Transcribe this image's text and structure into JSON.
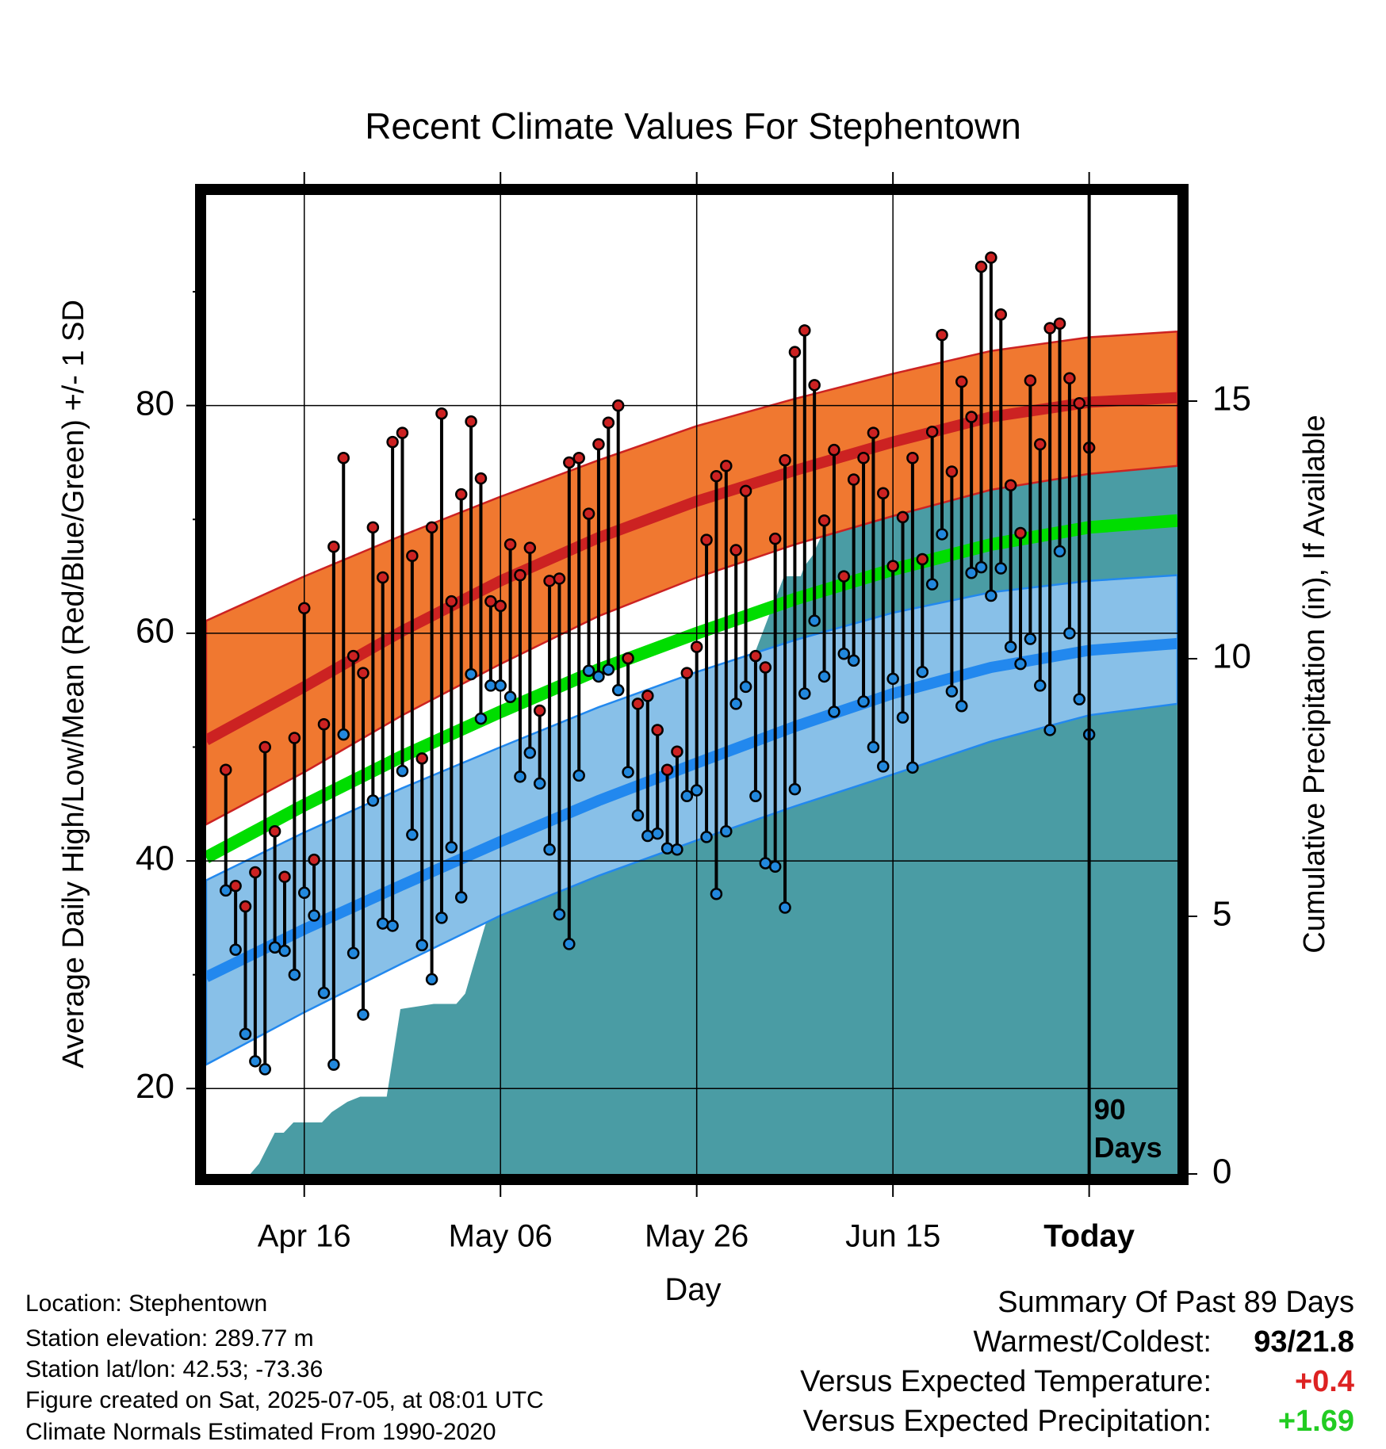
{
  "chart_data": {
    "type": "line",
    "title": "Recent Climate Values For Stephentown",
    "xlabel": "Day",
    "ylabel": "Average Daily High/Low/Mean (Red/Blue/Green) +/- 1 SD",
    "y2label": "Cumulative Precipitation (in), If Available",
    "ylim": [
      12.5,
      98.5
    ],
    "y2lim": [
      0,
      19
    ],
    "yticks": [
      20,
      40,
      60,
      80
    ],
    "y2ticks": [
      0,
      5,
      10,
      15
    ],
    "x_range_days": [
      -90,
      9
    ],
    "x_ticks": [
      {
        "day": -80,
        "label": "Apr 16"
      },
      {
        "day": -60,
        "label": "May 06"
      },
      {
        "day": -40,
        "label": "May 26"
      },
      {
        "day": -20,
        "label": "Jun 15"
      },
      {
        "day": 0,
        "label": "Today"
      }
    ],
    "today_marker": {
      "day": 0,
      "label_line1": "90",
      "label_line2": "Days"
    },
    "colors": {
      "high": "#cc2222",
      "high_band": "#f07830",
      "low": "#2288ee",
      "low_band": "#88c0e8",
      "mean": "#00dd00",
      "precip": "#4a9ca4"
    },
    "normals": {
      "days": [
        -90,
        -80,
        -70,
        -60,
        -50,
        -40,
        -30,
        -20,
        -10,
        0,
        9
      ],
      "high_mean": [
        50.6,
        55.3,
        60.2,
        64.6,
        68.4,
        71.6,
        74.3,
        76.8,
        79.0,
        80.3,
        80.7
      ],
      "high_upper": [
        61.1,
        65.0,
        68.6,
        72.0,
        75.2,
        78.2,
        80.6,
        82.8,
        84.8,
        86.0,
        86.5
      ],
      "high_lower": [
        43.2,
        47.8,
        52.8,
        57.3,
        61.5,
        64.9,
        67.8,
        70.3,
        72.6,
        74.0,
        74.7
      ],
      "low_mean": [
        29.8,
        34.0,
        37.9,
        41.7,
        45.3,
        48.6,
        51.8,
        54.7,
        57.0,
        58.5,
        59.1
      ],
      "low_upper": [
        38.3,
        42.5,
        46.4,
        50.0,
        53.5,
        56.6,
        59.4,
        61.8,
        63.6,
        64.6,
        65.1
      ],
      "low_lower": [
        22.1,
        26.7,
        31.0,
        35.2,
        38.7,
        41.8,
        44.8,
        47.6,
        50.5,
        52.8,
        53.8
      ],
      "mean": [
        40.3,
        44.9,
        49.2,
        53.1,
        56.8,
        60.0,
        63.0,
        65.6,
        67.8,
        69.3,
        69.9
      ]
    },
    "daily_high": [
      48.0,
      37.8,
      36.0,
      39.0,
      50.0,
      42.6,
      38.6,
      50.8,
      62.2,
      40.1,
      52.0,
      67.6,
      75.4,
      58.0,
      56.5,
      69.3,
      64.9,
      76.8,
      77.6,
      66.8,
      49.0,
      69.3,
      79.3,
      62.8,
      72.2,
      78.6,
      73.6,
      62.8,
      62.4,
      67.8,
      65.1,
      67.5,
      53.2,
      64.6,
      64.8,
      75.0,
      75.4,
      70.5,
      76.6,
      78.5,
      80.0,
      57.8,
      53.8,
      54.5,
      51.5,
      48.0,
      49.6,
      56.5,
      58.8,
      68.2,
      73.8,
      74.7,
      67.3,
      72.5,
      58.0,
      57.0,
      68.3,
      75.2,
      84.7,
      86.6,
      81.8,
      69.9,
      76.1,
      65.0,
      73.5,
      75.4,
      77.6,
      72.3,
      65.9,
      70.2,
      75.4,
      66.5,
      77.7,
      86.2,
      74.2,
      82.1,
      79.0,
      92.2,
      93.0,
      88.0,
      73.0,
      68.8,
      82.2,
      76.6,
      86.8,
      87.2,
      82.4,
      80.2,
      76.3
    ],
    "daily_low": [
      37.4,
      32.2,
      24.8,
      22.4,
      21.7,
      32.4,
      32.1,
      30.0,
      37.2,
      35.2,
      28.4,
      22.1,
      51.1,
      31.9,
      26.5,
      45.3,
      34.5,
      34.3,
      47.9,
      42.3,
      32.6,
      29.6,
      35.0,
      41.2,
      36.8,
      56.4,
      52.5,
      55.4,
      55.4,
      54.4,
      47.4,
      49.5,
      46.8,
      41.0,
      35.3,
      32.7,
      47.5,
      56.7,
      56.2,
      56.8,
      55.0,
      47.8,
      44.0,
      42.2,
      42.4,
      41.1,
      41.0,
      45.7,
      46.2,
      42.1,
      37.1,
      42.6,
      53.8,
      55.3,
      45.7,
      39.8,
      39.5,
      35.9,
      46.3,
      54.7,
      61.1,
      56.2,
      53.1,
      58.2,
      57.6,
      54.0,
      50.0,
      48.3,
      56.0,
      52.6,
      48.2,
      56.6,
      64.3,
      68.7,
      54.9,
      53.6,
      65.3,
      65.8,
      63.3,
      65.7,
      58.8,
      57.3,
      59.5,
      55.4,
      51.5,
      67.2,
      60.0,
      54.2,
      51.1
    ],
    "cumulative_precip": {
      "days": [
        -90,
        -85.5,
        -84.6,
        -83,
        -82.1,
        -81.1,
        -80,
        -78.2,
        -77.2,
        -75.6,
        -74.3,
        -73.4,
        -72.6,
        -71.6,
        -70.2,
        -66.8,
        -65.5,
        -64.5,
        -63.6,
        -61.6,
        -59.5,
        -58.1,
        -57.3,
        -56.3,
        -55.9,
        -55.5,
        -53.8,
        -50.5,
        -48.2,
        -46.6,
        -44.2,
        -42.6,
        -40.6,
        -38.5,
        -36.6,
        -35.8,
        -34.9,
        -31.1,
        -29.4,
        -29.0,
        -28.2,
        -27.5,
        -26.3,
        -25.3,
        -20.6,
        -18.9,
        -17.6,
        -16.1,
        -10.3,
        -5.4,
        0,
        9
      ],
      "values": [
        0,
        0,
        0.2,
        0.8,
        0.8,
        1.0,
        1.0,
        1.0,
        1.2,
        1.4,
        1.5,
        1.5,
        1.5,
        1.5,
        3.2,
        3.3,
        3.3,
        3.3,
        3.5,
        4.8,
        6.0,
        6.0,
        7.3,
        7.3,
        7.4,
        7.4,
        7.4,
        7.6,
        7.7,
        7.7,
        8.4,
        8.6,
        8.6,
        8.6,
        8.6,
        8.9,
        9.7,
        11.6,
        11.6,
        11.8,
        12.0,
        12.3,
        12.8,
        12.9,
        13.3,
        13.3,
        13.8,
        13.8,
        14.0,
        14.1,
        14.1,
        14.1
      ]
    }
  },
  "info": {
    "location": "Location: Stephentown",
    "elevation": "Station elevation: 289.77 m",
    "latlon": "Station lat/lon: 42.53; -73.36",
    "created": "Figure created on Sat, 2025-07-05, at 08:01 UTC",
    "normals": "Climate Normals Estimated From 1990-2020"
  },
  "summary": {
    "heading": "Summary Of Past 89 Days",
    "warmest_coldest_label": "Warmest/Coldest:",
    "warmest_value": "93",
    "coldest_value": "21.8",
    "temp_label": "Versus Expected Temperature:",
    "temp_value": "+0.4",
    "precip_label": "Versus Expected Precipitation:",
    "precip_value": "+1.69",
    "temp_color": "#dd2222",
    "precip_color": "#22cc22"
  }
}
